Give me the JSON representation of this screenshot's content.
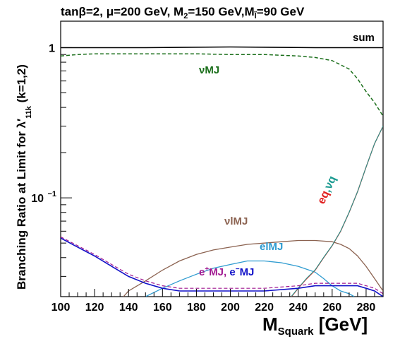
{
  "chart_data": {
    "type": "line",
    "title": {
      "text": "tanβ=2,  μ=200 GeV, M",
      "sub1": "2",
      "mid": "=150 GeV,M",
      "sub2": "l̃",
      "tail": "=90 GeV"
    },
    "xlabel": {
      "main": "M",
      "sub": "Squark",
      "unit": " [GeV]"
    },
    "ylabel": {
      "main": "Branching Ratio at Limit for  λ′",
      "sub": "11k",
      "tail": "  (k=1,2)"
    },
    "xlim": [
      100,
      290
    ],
    "ylim": [
      0.022,
      1.5
    ],
    "yscale": "log",
    "x_ticks": [
      "100",
      "120",
      "140",
      "160",
      "180",
      "200",
      "220",
      "240",
      "260",
      "280"
    ],
    "y_ticks": [
      {
        "value": 1,
        "label": "1"
      },
      {
        "value": 0.1,
        "label": "10",
        "exp": "−1"
      }
    ],
    "series": [
      {
        "name": "sum",
        "color": "#000000",
        "dash": "none",
        "width": 1.6,
        "x": [
          100,
          150,
          200,
          250,
          290
        ],
        "y": [
          1.0,
          1.0,
          1.01,
          1.0,
          1.0
        ]
      },
      {
        "name": "νMJ",
        "color": "#1a6e1a",
        "dash": "5,3",
        "width": 1.5,
        "x": [
          100,
          110,
          120,
          140,
          160,
          180,
          200,
          220,
          240,
          250,
          260,
          270,
          275,
          280,
          285,
          290
        ],
        "y": [
          0.88,
          0.9,
          0.91,
          0.91,
          0.91,
          0.91,
          0.9,
          0.9,
          0.88,
          0.86,
          0.82,
          0.72,
          0.62,
          0.51,
          0.43,
          0.35
        ]
      },
      {
        "name": "νlMJ",
        "color": "#8b6250",
        "dash": "none",
        "width": 1.3,
        "x": [
          137,
          140,
          150,
          160,
          170,
          180,
          190,
          200,
          210,
          220,
          230,
          240,
          250,
          260,
          265,
          270,
          275,
          280,
          285,
          290
        ],
        "y": [
          0.022,
          0.024,
          0.028,
          0.033,
          0.038,
          0.042,
          0.045,
          0.047,
          0.049,
          0.05,
          0.051,
          0.052,
          0.052,
          0.051,
          0.049,
          0.046,
          0.041,
          0.035,
          0.029,
          0.024
        ]
      },
      {
        "name": "elMJ",
        "color": "#2e9bd0",
        "dash": "none",
        "width": 1.3,
        "x": [
          150,
          160,
          170,
          180,
          190,
          200,
          210,
          220,
          230,
          240,
          250,
          255,
          260,
          265,
          270,
          273
        ],
        "y": [
          0.022,
          0.025,
          0.028,
          0.031,
          0.034,
          0.036,
          0.038,
          0.038,
          0.037,
          0.035,
          0.032,
          0.029,
          0.026,
          0.024,
          0.023,
          0.022
        ]
      },
      {
        "name": "eq,νq",
        "color": "#e02020",
        "dash": "none",
        "width": 1.3,
        "x": [
          236,
          240,
          245,
          250,
          255,
          260,
          265,
          270,
          275,
          280,
          285,
          290
        ],
        "y": [
          0.022,
          0.025,
          0.029,
          0.033,
          0.04,
          0.048,
          0.06,
          0.08,
          0.11,
          0.16,
          0.23,
          0.3
        ]
      },
      {
        "name": "eq,νq (2)",
        "color": "#1a9a90",
        "dash": "none",
        "width": 1.0,
        "x": [
          236,
          240,
          245,
          250,
          255,
          260,
          265,
          270,
          275,
          280,
          285,
          290
        ],
        "y": [
          0.0221,
          0.0251,
          0.0292,
          0.0332,
          0.0402,
          0.0482,
          0.0602,
          0.0802,
          0.1102,
          0.1602,
          0.2302,
          0.3002
        ]
      },
      {
        "name": "e⁺MJ",
        "color": "#a01890",
        "dash": "5,3",
        "width": 1.2,
        "x": [
          100,
          110,
          120,
          130,
          140,
          150,
          160,
          170,
          180,
          200,
          220,
          240,
          250,
          260,
          270,
          275,
          280,
          285,
          290
        ],
        "y": [
          0.055,
          0.048,
          0.042,
          0.036,
          0.031,
          0.028,
          0.026,
          0.025,
          0.025,
          0.025,
          0.025,
          0.026,
          0.027,
          0.027,
          0.027,
          0.027,
          0.026,
          0.025,
          0.023
        ]
      },
      {
        "name": "e⁻MJ",
        "color": "#1010c8",
        "dash": "none",
        "width": 1.6,
        "x": [
          100,
          110,
          120,
          130,
          140,
          150,
          160,
          170,
          180,
          200,
          220,
          240,
          250,
          260,
          270,
          275,
          280,
          285,
          290
        ],
        "y": [
          0.054,
          0.047,
          0.041,
          0.035,
          0.03,
          0.027,
          0.025,
          0.024,
          0.024,
          0.024,
          0.024,
          0.025,
          0.026,
          0.026,
          0.026,
          0.026,
          0.025,
          0.024,
          0.022
        ]
      }
    ],
    "annotations": {
      "sum": "sum",
      "nuMJ": "νMJ",
      "nulMJ": "νlMJ",
      "elMJ": "elMJ",
      "eq_a": "eq",
      "eq_b": ",",
      "eq_c": "νq",
      "ep_a": "e",
      "ep_sup": "+",
      "ep_b": "MJ,",
      "em_a": " e",
      "em_sup": "−",
      "em_b": "MJ"
    },
    "colors": {
      "sum": "#000000",
      "nuMJ": "#1a6e1a",
      "nulMJ": "#8b6250",
      "elMJ": "#2e9bd0",
      "eq": "#e02020",
      "nuq": "#1a9a90",
      "ep": "#a01890",
      "em": "#1010c8"
    },
    "grid": false,
    "legend": "inline labels"
  }
}
